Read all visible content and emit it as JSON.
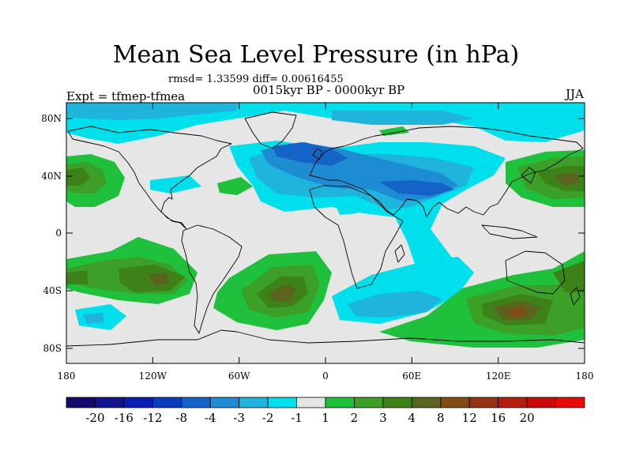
{
  "header": {
    "title": "Mean Sea Level Pressure (in hPa)",
    "stats": "rmsd= 1.33599 diff= 0.00616455",
    "period": "0015kyr BP - 0000kyr BP",
    "experiment": "Expt = tfmep-tfmea",
    "season": "JJA"
  },
  "axes": {
    "lon_ticks": [
      "180",
      "120W",
      "60W",
      "0",
      "60E",
      "120E",
      "180"
    ],
    "lat_ticks": [
      "80N",
      "40N",
      "0",
      "40S",
      "80S"
    ]
  },
  "colorbar": {
    "colors": [
      "#140a6b",
      "#14148f",
      "#0a1eb4",
      "#0a3cbe",
      "#1464c8",
      "#1e8cd2",
      "#1eb4dc",
      "#00e0ec",
      "#e6e6e6",
      "#1ec03c",
      "#3ca028",
      "#3c8219",
      "#5a641e",
      "#824b14",
      "#963214",
      "#b41e0f",
      "#c80a0a",
      "#e60a0a"
    ],
    "labels": [
      "-20",
      "-16",
      "-12",
      "-8",
      "-4",
      "-3",
      "-2",
      "-1",
      "1",
      "2",
      "3",
      "4",
      "8",
      "12",
      "16",
      "20"
    ]
  },
  "palette": {
    "ocean_neutral": "#e6e6e6",
    "coast": "#000000"
  }
}
